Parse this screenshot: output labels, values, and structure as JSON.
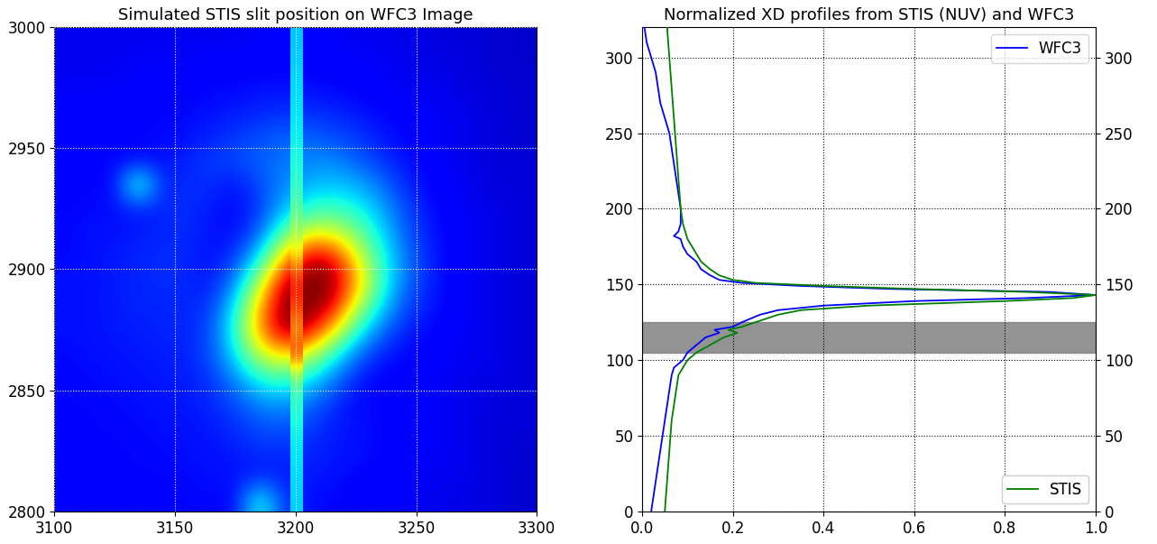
{
  "chart_data": [
    {
      "type": "heatmap",
      "title": "Simulated STIS slit position on WFC3 Image",
      "xlim": [
        3100,
        3300
      ],
      "ylim": [
        2800,
        3000
      ],
      "xticks": [
        3100,
        3150,
        3200,
        3250,
        3300
      ],
      "yticks": [
        2800,
        2850,
        2900,
        2950,
        3000
      ],
      "grid": true,
      "cells": [
        [
          0.11,
          0.12,
          0.12,
          0.12,
          0.12,
          0.13,
          0.13,
          0.13,
          0.4,
          0.18,
          0.14,
          0.13,
          0.12,
          0.12,
          0.11,
          0.1,
          0.09,
          0.09,
          0.08,
          0.07
        ],
        [
          0.12,
          0.12,
          0.12,
          0.13,
          0.13,
          0.13,
          0.14,
          0.14,
          0.15,
          0.15,
          0.15,
          0.14,
          0.13,
          0.12,
          0.11,
          0.1,
          0.1,
          0.09,
          0.08,
          0.07
        ],
        [
          0.12,
          0.12,
          0.13,
          0.13,
          0.13,
          0.14,
          0.14,
          0.15,
          0.17,
          0.17,
          0.16,
          0.15,
          0.14,
          0.13,
          0.12,
          0.11,
          0.1,
          0.09,
          0.08,
          0.07
        ],
        [
          0.12,
          0.13,
          0.13,
          0.13,
          0.14,
          0.14,
          0.15,
          0.17,
          0.2,
          0.21,
          0.19,
          0.15,
          0.14,
          0.13,
          0.12,
          0.11,
          0.1,
          0.09,
          0.08,
          0.08
        ],
        [
          0.13,
          0.13,
          0.13,
          0.14,
          0.14,
          0.15,
          0.16,
          0.2,
          0.26,
          0.28,
          0.24,
          0.18,
          0.13,
          0.13,
          0.12,
          0.11,
          0.1,
          0.09,
          0.08,
          0.08
        ],
        [
          0.13,
          0.13,
          0.14,
          0.14,
          0.15,
          0.15,
          0.18,
          0.26,
          0.38,
          0.42,
          0.36,
          0.26,
          0.16,
          0.12,
          0.12,
          0.11,
          0.1,
          0.09,
          0.09,
          0.08
        ],
        [
          0.13,
          0.14,
          0.14,
          0.15,
          0.15,
          0.16,
          0.2,
          0.35,
          0.58,
          0.7,
          0.6,
          0.4,
          0.24,
          0.16,
          0.13,
          0.12,
          0.11,
          0.1,
          0.09,
          0.08
        ],
        [
          0.14,
          0.14,
          0.15,
          0.15,
          0.16,
          0.16,
          0.2,
          0.4,
          0.75,
          0.98,
          0.95,
          0.7,
          0.4,
          0.24,
          0.16,
          0.13,
          0.11,
          0.1,
          0.09,
          0.08
        ],
        [
          0.14,
          0.14,
          0.15,
          0.16,
          0.16,
          0.16,
          0.18,
          0.35,
          0.72,
          1.0,
          1.0,
          0.95,
          0.6,
          0.35,
          0.2,
          0.15,
          0.12,
          0.1,
          0.09,
          0.08
        ],
        [
          0.14,
          0.14,
          0.15,
          0.16,
          0.17,
          0.16,
          0.15,
          0.25,
          0.55,
          0.95,
          1.0,
          1.0,
          0.75,
          0.42,
          0.24,
          0.16,
          0.12,
          0.1,
          0.09,
          0.08
        ],
        [
          0.13,
          0.14,
          0.15,
          0.16,
          0.17,
          0.16,
          0.14,
          0.18,
          0.35,
          0.7,
          0.95,
          0.92,
          0.65,
          0.4,
          0.25,
          0.16,
          0.12,
          0.1,
          0.09,
          0.08
        ],
        [
          0.13,
          0.14,
          0.14,
          0.15,
          0.16,
          0.17,
          0.14,
          0.14,
          0.22,
          0.45,
          0.62,
          0.62,
          0.5,
          0.35,
          0.22,
          0.15,
          0.12,
          0.1,
          0.09,
          0.08
        ],
        [
          0.13,
          0.13,
          0.14,
          0.15,
          0.16,
          0.17,
          0.15,
          0.13,
          0.18,
          0.3,
          0.4,
          0.42,
          0.38,
          0.3,
          0.2,
          0.14,
          0.11,
          0.1,
          0.09,
          0.08
        ],
        [
          0.12,
          0.13,
          0.13,
          0.45,
          0.15,
          0.17,
          0.17,
          0.14,
          0.2,
          0.26,
          0.3,
          0.32,
          0.3,
          0.24,
          0.17,
          0.13,
          0.11,
          0.09,
          0.08,
          0.08
        ],
        [
          0.12,
          0.12,
          0.13,
          0.13,
          0.14,
          0.16,
          0.18,
          0.2,
          0.22,
          0.24,
          0.26,
          0.26,
          0.22,
          0.18,
          0.14,
          0.12,
          0.1,
          0.09,
          0.08,
          0.08
        ],
        [
          0.12,
          0.12,
          0.12,
          0.13,
          0.13,
          0.14,
          0.16,
          0.18,
          0.2,
          0.22,
          0.22,
          0.2,
          0.18,
          0.15,
          0.13,
          0.11,
          0.1,
          0.09,
          0.08,
          0.07
        ],
        [
          0.11,
          0.11,
          0.12,
          0.12,
          0.13,
          0.13,
          0.14,
          0.15,
          0.16,
          0.17,
          0.17,
          0.16,
          0.15,
          0.13,
          0.12,
          0.11,
          0.1,
          0.09,
          0.08,
          0.07
        ],
        [
          0.11,
          0.11,
          0.11,
          0.11,
          0.12,
          0.12,
          0.13,
          0.13,
          0.14,
          0.14,
          0.14,
          0.13,
          0.12,
          0.11,
          0.1,
          0.1,
          0.09,
          0.08,
          0.08,
          0.07
        ],
        [
          0.1,
          0.1,
          0.1,
          0.11,
          0.11,
          0.11,
          0.12,
          0.12,
          0.12,
          0.12,
          0.12,
          0.12,
          0.11,
          0.11,
          0.1,
          0.09,
          0.09,
          0.08,
          0.07,
          0.07
        ],
        [
          0.1,
          0.1,
          0.1,
          0.1,
          0.1,
          0.1,
          0.1,
          0.1,
          0.11,
          0.11,
          0.11,
          0.11,
          0.1,
          0.1,
          0.09,
          0.09,
          0.08,
          0.08,
          0.07,
          0.07
        ]
      ],
      "slit": {
        "x": [
          3198,
          3203
        ],
        "cells": [
          0.33,
          0.34,
          0.35,
          0.37,
          0.4,
          0.45,
          0.85,
          0.75,
          0.85,
          0.9,
          0.7,
          0.55,
          0.45,
          0.4,
          0.38,
          0.36,
          0.35,
          0.34,
          0.33,
          0.32
        ]
      }
    },
    {
      "type": "line",
      "title": "Normalized XD profiles from STIS (NUV) and WFC3",
      "xlim": [
        0,
        1
      ],
      "ylim": [
        0,
        320
      ],
      "xticks": [
        {
          "value": 0,
          "label": "0.0"
        },
        {
          "value": 0.2,
          "label": "0.2"
        },
        {
          "value": 0.4,
          "label": "0.4"
        },
        {
          "value": 0.6,
          "label": "0.6"
        },
        {
          "value": 0.8,
          "label": "0.8"
        },
        {
          "value": 1,
          "label": "1.0"
        }
      ],
      "yticks": [
        0,
        50,
        100,
        150,
        200,
        250,
        300
      ],
      "grid": true,
      "band": [
        105,
        125
      ],
      "series": [
        {
          "name": "WFC3",
          "color": "#0000ff",
          "legend": "upper right",
          "y": [
            0,
            10,
            20,
            30,
            40,
            50,
            60,
            70,
            80,
            90,
            95,
            100,
            105,
            110,
            115,
            118,
            120,
            122,
            125,
            130,
            133,
            136,
            139,
            141,
            143,
            145,
            147,
            149,
            151,
            153,
            156,
            160,
            165,
            170,
            175,
            180,
            182,
            185,
            190,
            200,
            210,
            220,
            230,
            240,
            250,
            260,
            270,
            280,
            290,
            300,
            310,
            320
          ],
          "values": [
            0.02,
            0.025,
            0.03,
            0.035,
            0.04,
            0.045,
            0.05,
            0.055,
            0.06,
            0.065,
            0.07,
            0.09,
            0.1,
            0.12,
            0.14,
            0.17,
            0.16,
            0.2,
            0.22,
            0.26,
            0.3,
            0.4,
            0.6,
            0.85,
            1.0,
            0.9,
            0.55,
            0.35,
            0.22,
            0.17,
            0.15,
            0.13,
            0.12,
            0.1,
            0.09,
            0.085,
            0.07,
            0.08,
            0.085,
            0.085,
            0.08,
            0.075,
            0.07,
            0.065,
            0.06,
            0.05,
            0.04,
            0.035,
            0.03,
            0.02,
            0.01,
            0.005
          ]
        },
        {
          "name": "STIS",
          "color": "#008000",
          "legend": "lower right",
          "y": [
            0,
            20,
            40,
            60,
            80,
            90,
            100,
            105,
            110,
            115,
            118,
            120,
            122,
            125,
            130,
            133,
            136,
            139,
            141,
            143,
            145,
            147,
            149,
            151,
            153,
            156,
            160,
            165,
            170,
            175,
            180,
            190,
            200,
            220,
            240,
            260,
            280,
            300,
            320
          ],
          "values": [
            0.05,
            0.055,
            0.06,
            0.065,
            0.075,
            0.08,
            0.1,
            0.12,
            0.15,
            0.18,
            0.21,
            0.19,
            0.22,
            0.25,
            0.3,
            0.35,
            0.5,
            0.8,
            0.95,
            1.0,
            0.85,
            0.6,
            0.4,
            0.25,
            0.2,
            0.17,
            0.15,
            0.13,
            0.12,
            0.11,
            0.1,
            0.09,
            0.085,
            0.08,
            0.075,
            0.07,
            0.065,
            0.06,
            0.055
          ]
        }
      ]
    }
  ]
}
